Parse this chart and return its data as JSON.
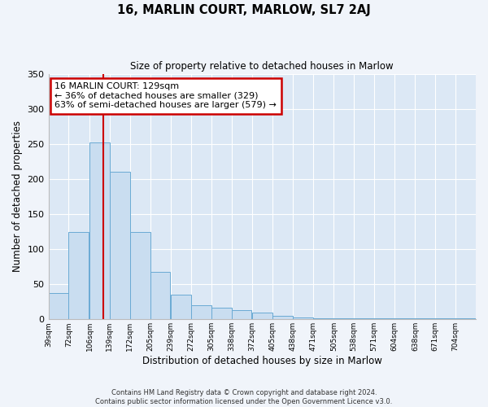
{
  "title": "16, MARLIN COURT, MARLOW, SL7 2AJ",
  "subtitle": "Size of property relative to detached houses in Marlow",
  "xlabel": "Distribution of detached houses by size in Marlow",
  "ylabel": "Number of detached properties",
  "bar_color": "#c9ddf0",
  "bar_edge_color": "#6aaad4",
  "background_color": "#dce8f5",
  "fig_background_color": "#f0f4fa",
  "grid_color": "#ffffff",
  "vline_x": 129,
  "vline_color": "#cc0000",
  "bin_edges": [
    39,
    72,
    106,
    139,
    172,
    205,
    239,
    272,
    305,
    338,
    372,
    405,
    438,
    471,
    505,
    538,
    571,
    604,
    638,
    671,
    704,
    737
  ],
  "bar_heights": [
    38,
    125,
    252,
    210,
    125,
    68,
    35,
    20,
    17,
    13,
    10,
    5,
    3,
    2,
    2,
    2,
    2,
    2,
    2,
    2,
    2
  ],
  "tick_labels": [
    "39sqm",
    "72sqm",
    "106sqm",
    "139sqm",
    "172sqm",
    "205sqm",
    "239sqm",
    "272sqm",
    "305sqm",
    "338sqm",
    "372sqm",
    "405sqm",
    "438sqm",
    "471sqm",
    "505sqm",
    "538sqm",
    "571sqm",
    "604sqm",
    "638sqm",
    "671sqm",
    "704sqm"
  ],
  "annotation_title": "16 MARLIN COURT: 129sqm",
  "annotation_line1": "← 36% of detached houses are smaller (329)",
  "annotation_line2": "63% of semi-detached houses are larger (579) →",
  "annotation_box_color": "#ffffff",
  "annotation_box_edge_color": "#cc0000",
  "ylim": [
    0,
    350
  ],
  "yticks": [
    0,
    50,
    100,
    150,
    200,
    250,
    300,
    350
  ],
  "footer_line1": "Contains HM Land Registry data © Crown copyright and database right 2024.",
  "footer_line2": "Contains public sector information licensed under the Open Government Licence v3.0."
}
